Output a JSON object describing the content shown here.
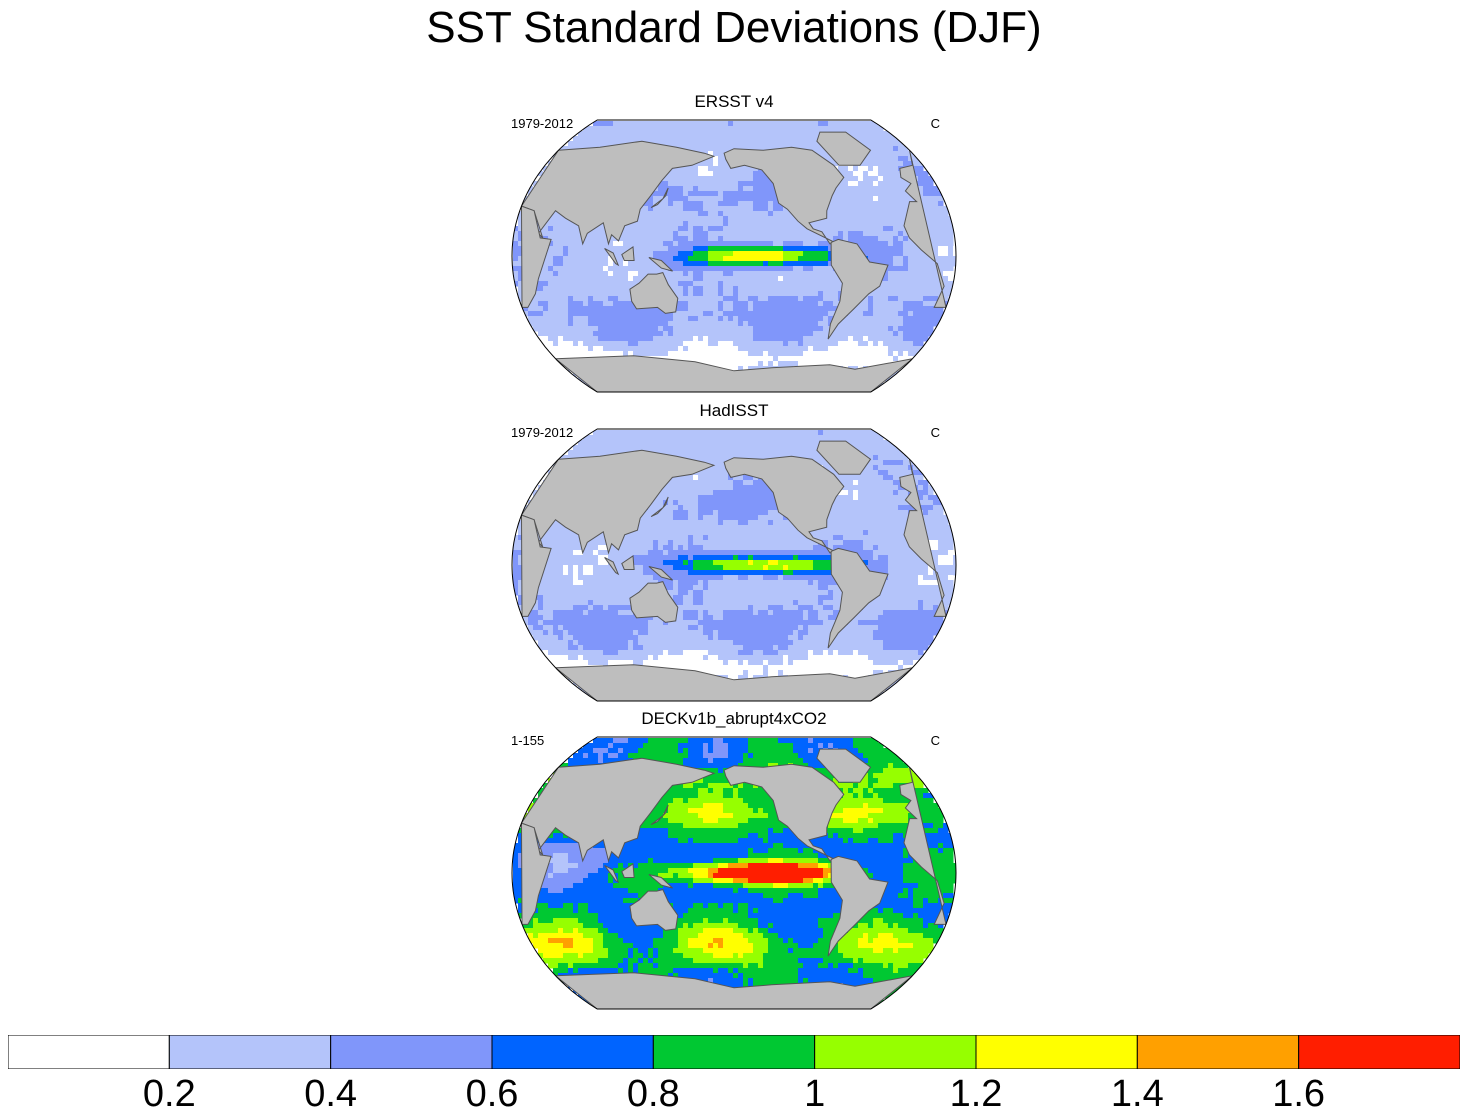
{
  "title": "SST Standard Deviations (DJF)",
  "colors": {
    "ocean_bins": [
      "#ffffff",
      "#b4c4fa",
      "#8096fa",
      "#0064ff",
      "#00c832",
      "#96ff00",
      "#ffff00",
      "#ffa000",
      "#ff1e00"
    ],
    "land": "#bebebe",
    "coast": "#555555"
  },
  "panels": [
    {
      "title": "ERSST v4",
      "left_label": "1979-2012",
      "right_label": "C",
      "field_type": "observed",
      "nino_peak": 1.1
    },
    {
      "title": "HadISST",
      "left_label": "1979-2012",
      "right_label": "C",
      "field_type": "observed",
      "nino_peak": 1.1
    },
    {
      "title": "DECKv1b_abrupt4xCO2",
      "left_label": "1-155",
      "right_label": "C",
      "field_type": "model",
      "nino_peak": 1.7
    }
  ],
  "colorbar": {
    "labels": [
      "0.2",
      "0.4",
      "0.6",
      "0.8",
      "1",
      "1.2",
      "1.4",
      "1.6"
    ],
    "levels": [
      0.2,
      0.4,
      0.6,
      0.8,
      1.0,
      1.2,
      1.4,
      1.6
    ]
  }
}
